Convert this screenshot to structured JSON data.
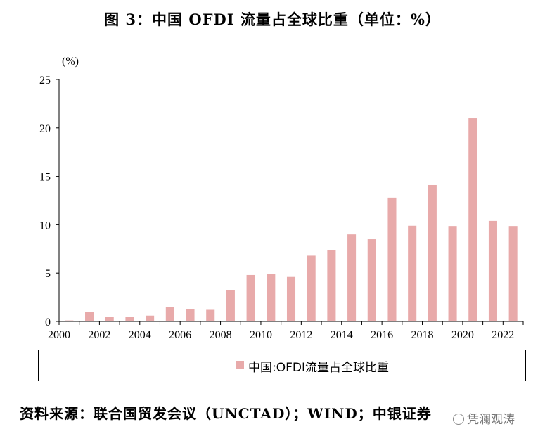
{
  "title": "图 3：中国 OFDI 流量占全球比重（单位：%）",
  "source": "资料来源：联合国贸发会议（UNCTAD）；WIND；中银证券",
  "watermark": "凭澜观涛",
  "colors": {
    "bar": "#e8aaaa",
    "axis": "#000000"
  },
  "chart_data": {
    "type": "bar",
    "title": "图 3：中国 OFDI 流量占全球比重（单位：%）",
    "ylabel": "(%)",
    "xlabel": "",
    "ylim": [
      0,
      25
    ],
    "yticks": [
      0,
      5,
      10,
      15,
      20,
      25
    ],
    "xtick_labels": [
      "2000",
      "2002",
      "2004",
      "2006",
      "2008",
      "2010",
      "2012",
      "2014",
      "2016",
      "2018",
      "2020",
      "2022"
    ],
    "legend": "bottom",
    "grid": false,
    "categories": [
      "2000",
      "2001",
      "2002",
      "2003",
      "2004",
      "2005",
      "2006",
      "2007",
      "2008",
      "2009",
      "2010",
      "2011",
      "2012",
      "2013",
      "2014",
      "2015",
      "2016",
      "2017",
      "2018",
      "2019",
      "2020",
      "2021",
      "2022"
    ],
    "series": [
      {
        "name": "中国:OFDI流量占全球比重",
        "values": [
          0.1,
          1.0,
          0.5,
          0.5,
          0.6,
          1.5,
          1.3,
          1.2,
          3.2,
          4.8,
          4.9,
          4.6,
          6.8,
          7.4,
          9.0,
          8.5,
          12.8,
          9.9,
          14.1,
          9.8,
          21.0,
          10.4,
          9.8
        ]
      }
    ]
  }
}
